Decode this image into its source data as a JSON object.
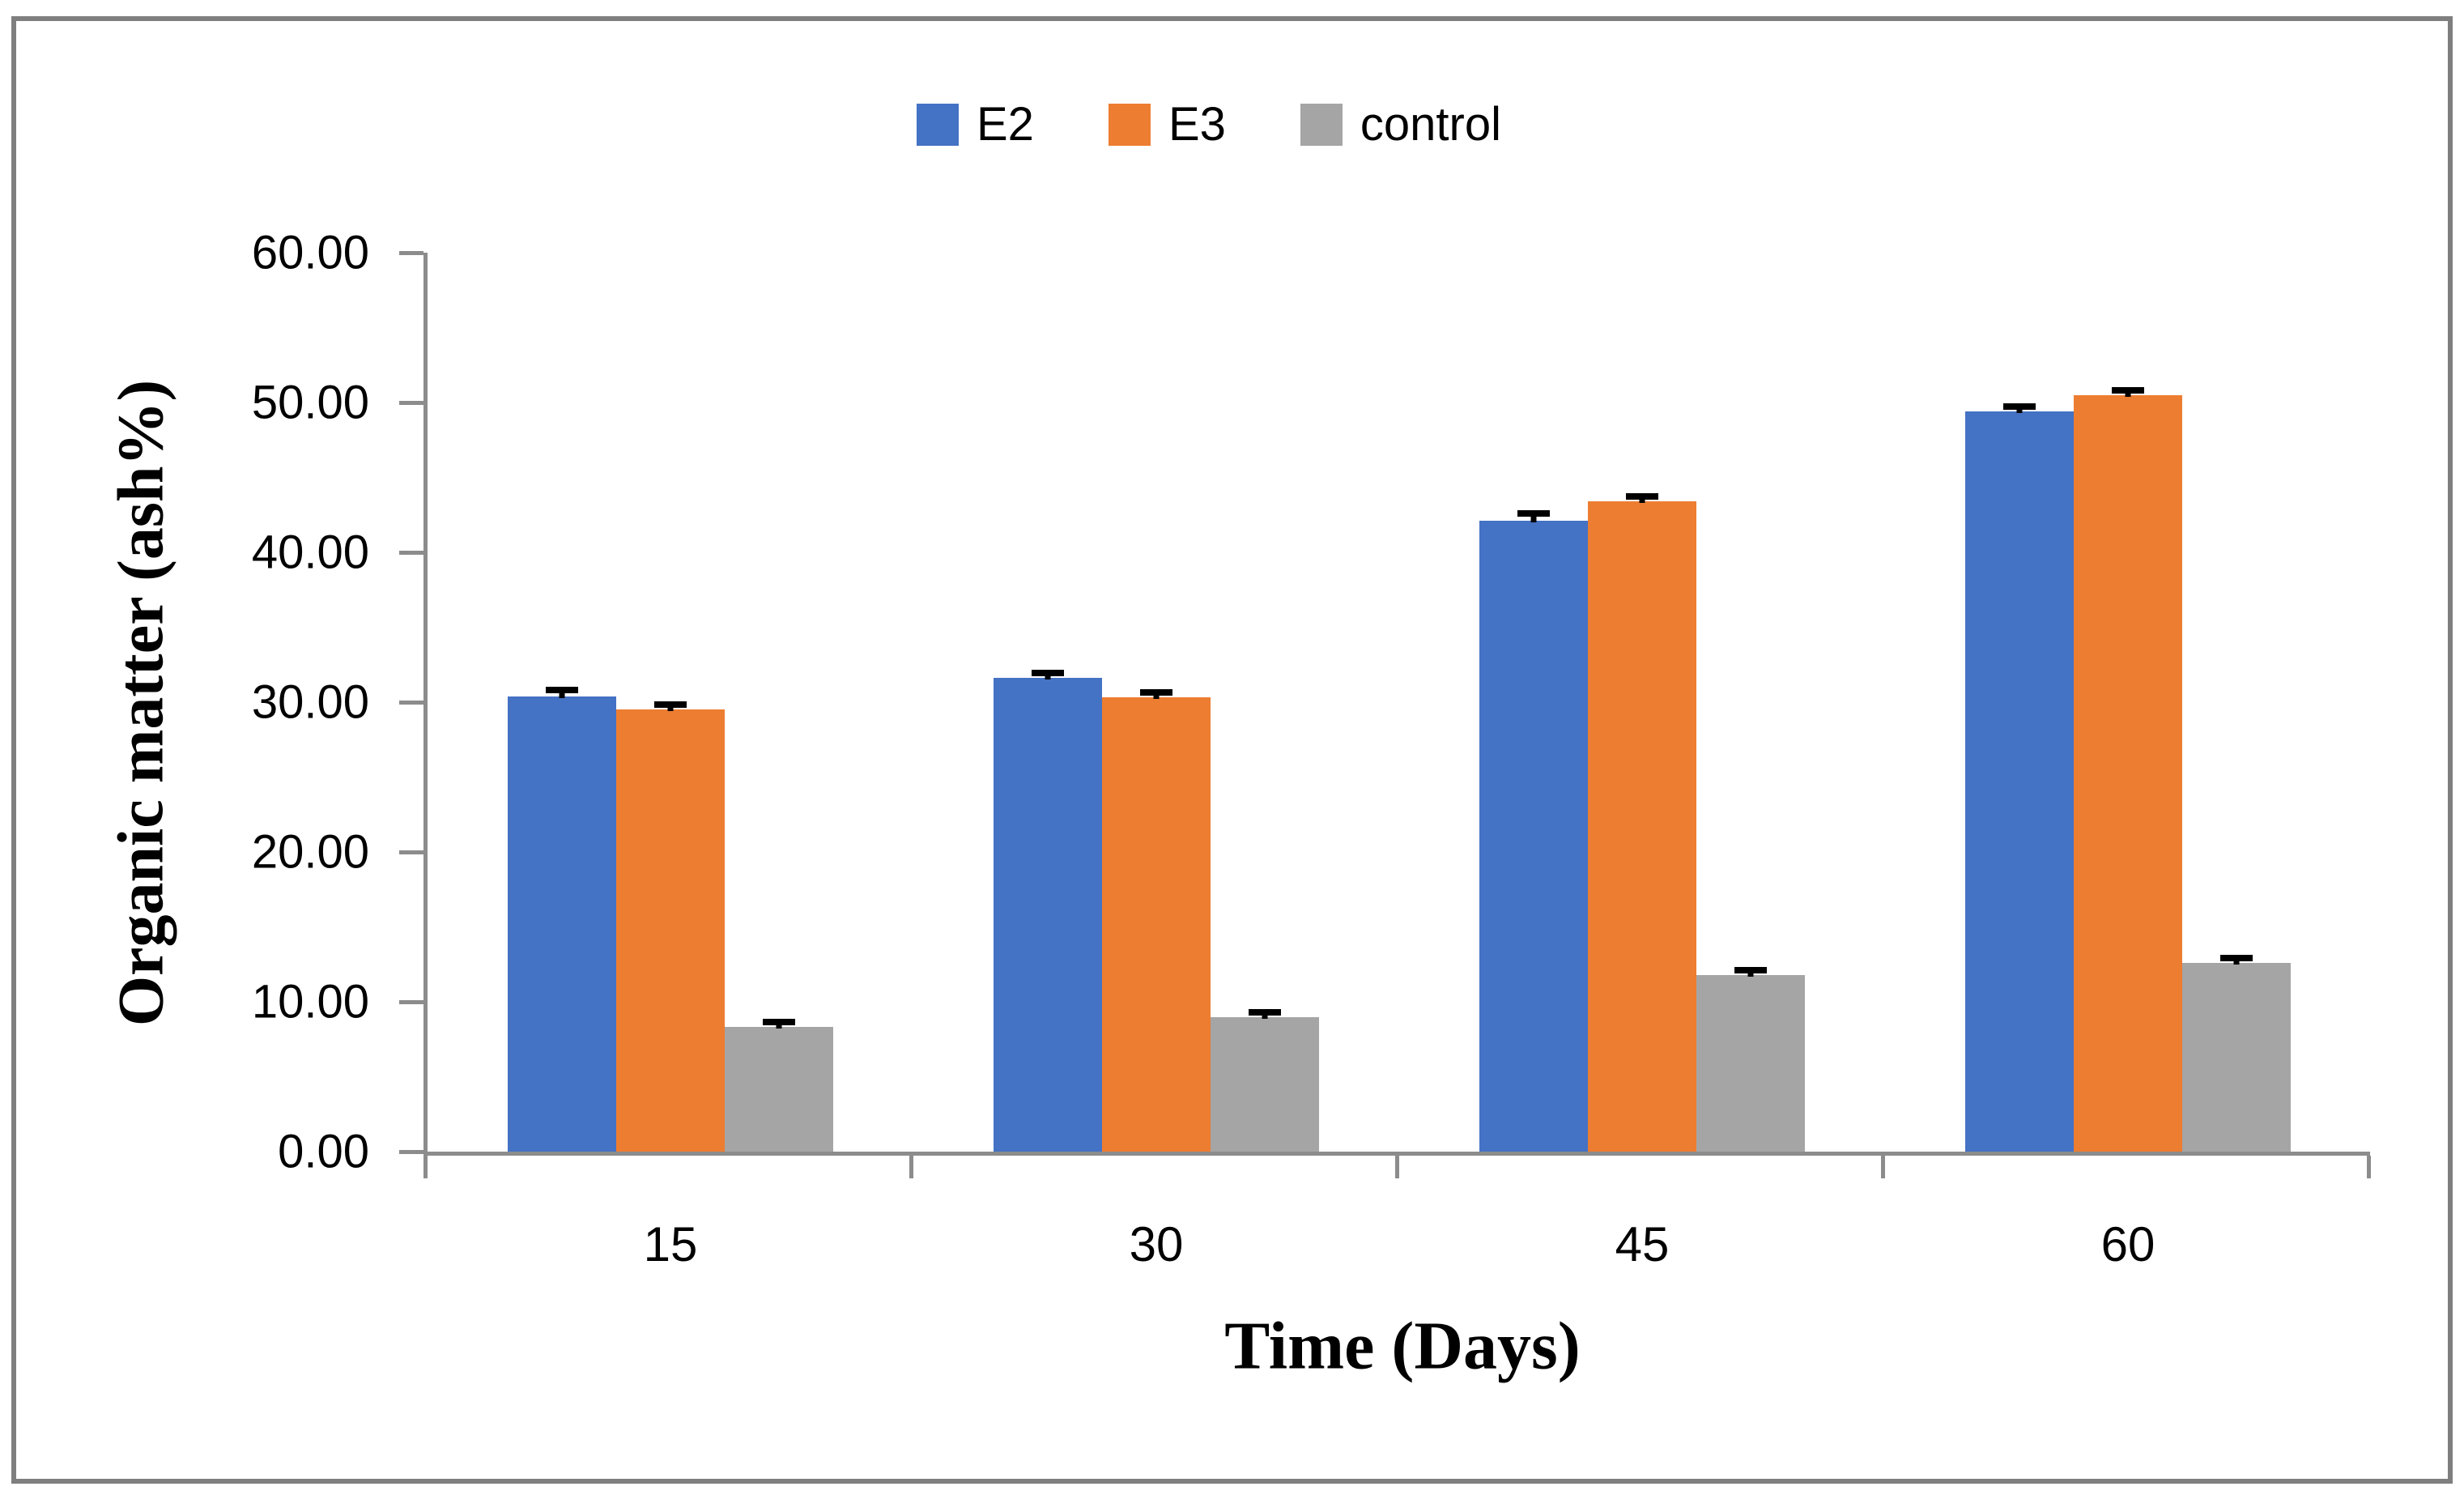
{
  "figure": {
    "background": "#ffffff",
    "border_color": "#7f7f7f",
    "axis_color": "#8c8c8c",
    "error_bar_color": "#000000"
  },
  "legend": {
    "position": "top-center",
    "items": [
      {
        "label": "E2",
        "color": "#4472C4"
      },
      {
        "label": "E3",
        "color": "#ED7D31"
      },
      {
        "label": "control",
        "color": "#A5A5A5"
      }
    ]
  },
  "y_axis": {
    "title": "Organic matter (ash%)",
    "tick_labels": [
      "60.00",
      "50.00",
      "40.00",
      "30.00",
      "20.00",
      "10.00",
      "0.00"
    ],
    "min": 0,
    "max": 60
  },
  "x_axis": {
    "title": "Time (Days)",
    "categories": [
      "15",
      "30",
      "45",
      "60"
    ]
  },
  "chart_data": {
    "type": "bar",
    "title": "",
    "xlabel": "Time (Days)",
    "ylabel": "Organic matter (ash%)",
    "categories": [
      "15",
      "30",
      "45",
      "60"
    ],
    "series": [
      {
        "name": "E2",
        "color": "#4472C4",
        "values": [
          30.4,
          31.6,
          42.1,
          49.4
        ],
        "errors": [
          0.4,
          0.25,
          0.5,
          0.35
        ]
      },
      {
        "name": "E3",
        "color": "#ED7D31",
        "values": [
          29.5,
          30.3,
          43.4,
          50.5
        ],
        "errors": [
          0.3,
          0.2,
          0.35,
          0.3
        ]
      },
      {
        "name": "control",
        "color": "#A5A5A5",
        "values": [
          8.3,
          9.0,
          11.8,
          12.6
        ],
        "errors": [
          0.3,
          0.2,
          0.3,
          0.3
        ]
      }
    ],
    "ylim": [
      0,
      60
    ],
    "grid": false,
    "legend_position": "top",
    "error_bars": "plus-direction-with-caps"
  }
}
